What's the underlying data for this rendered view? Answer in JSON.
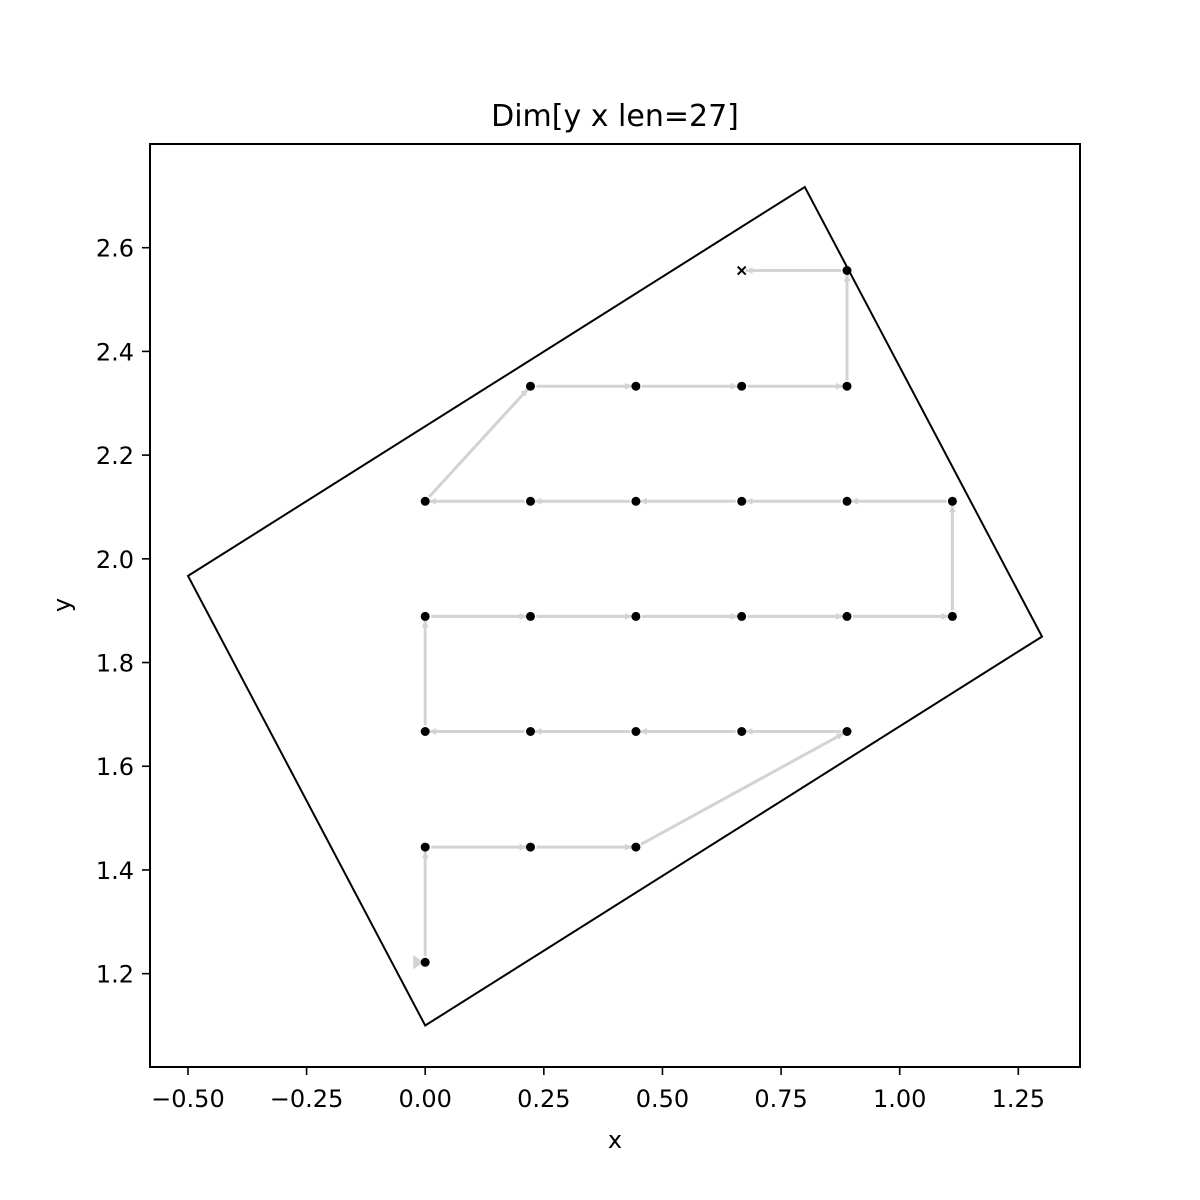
{
  "chart_data": {
    "type": "scatter",
    "title": "Dim[y x len=27]",
    "xlabel": "x",
    "ylabel": "y",
    "xlim": [
      -0.58,
      1.38
    ],
    "ylim": [
      1.02,
      2.8
    ],
    "xticks": [
      -0.5,
      -0.25,
      0.0,
      0.25,
      0.5,
      0.75,
      1.0,
      1.25
    ],
    "xtick_labels": [
      "−0.50",
      "−0.25",
      "0.00",
      "0.25",
      "0.50",
      "0.75",
      "1.00",
      "1.25"
    ],
    "yticks": [
      1.2,
      1.4,
      1.6,
      1.8,
      2.0,
      2.2,
      2.4,
      2.6
    ],
    "ytick_labels": [
      "1.2",
      "1.4",
      "1.6",
      "1.8",
      "2.0",
      "2.2",
      "2.4",
      "2.6"
    ],
    "grid": false,
    "boundary": [
      [
        0.0,
        1.1
      ],
      [
        1.3,
        1.85
      ],
      [
        0.8,
        2.717
      ],
      [
        -0.5,
        1.967
      ]
    ],
    "path": [
      [
        0.0,
        1.222
      ],
      [
        0.0,
        1.444
      ],
      [
        0.222,
        1.444
      ],
      [
        0.444,
        1.444
      ],
      [
        0.889,
        1.667
      ],
      [
        0.667,
        1.667
      ],
      [
        0.444,
        1.667
      ],
      [
        0.222,
        1.667
      ],
      [
        0.0,
        1.667
      ],
      [
        0.0,
        1.889
      ],
      [
        0.222,
        1.889
      ],
      [
        0.444,
        1.889
      ],
      [
        0.667,
        1.889
      ],
      [
        0.889,
        1.889
      ],
      [
        1.111,
        1.889
      ],
      [
        1.111,
        2.111
      ],
      [
        0.889,
        2.111
      ],
      [
        0.667,
        2.111
      ],
      [
        0.444,
        2.111
      ],
      [
        0.222,
        2.111
      ],
      [
        0.0,
        2.111
      ],
      [
        0.222,
        2.333
      ],
      [
        0.444,
        2.333
      ],
      [
        0.667,
        2.333
      ],
      [
        0.889,
        2.333
      ],
      [
        0.889,
        2.556
      ],
      [
        0.667,
        2.556
      ]
    ],
    "colors": {
      "boundary": "#000000",
      "arrow": "#d3d3d3",
      "point": "#000000",
      "axes": "#000000"
    }
  }
}
